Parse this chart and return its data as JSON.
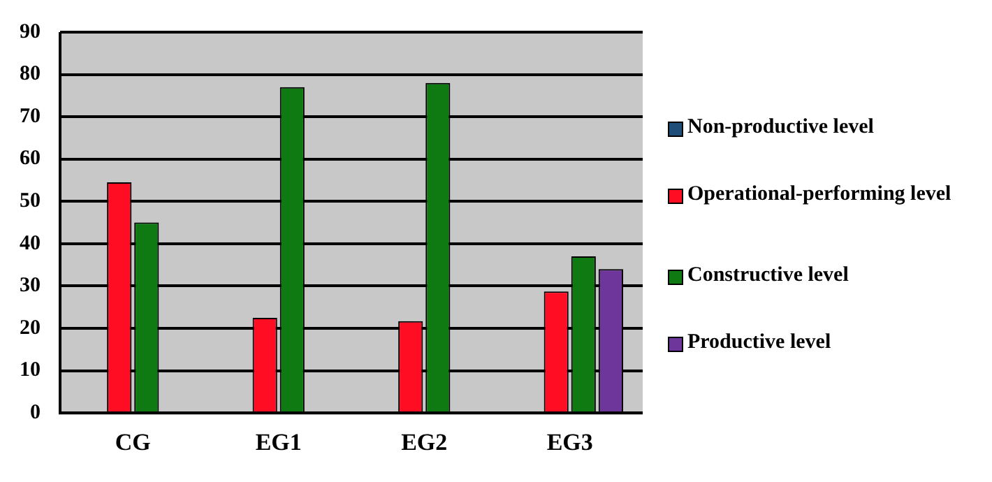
{
  "chart_data": {
    "type": "bar",
    "categories": [
      "CG",
      "EG1",
      "EG2",
      "EG3"
    ],
    "series": [
      {
        "name": "Non-productive level",
        "color": "#1f4e79",
        "values": [
          null,
          null,
          null,
          null
        ]
      },
      {
        "name": "Operational-performing level",
        "color": "#ff0d22",
        "values": [
          54.5,
          22.5,
          21.7,
          28.7
        ]
      },
      {
        "name": "Constructive level",
        "color": "#0f7a12",
        "values": [
          45,
          77,
          78,
          37
        ]
      },
      {
        "name": "Productive level",
        "color": "#6e369a",
        "values": [
          null,
          null,
          null,
          34
        ]
      }
    ],
    "ylim": [
      0,
      90
    ],
    "yticks": [
      0,
      10,
      20,
      30,
      40,
      50,
      60,
      70,
      80,
      90
    ],
    "grid": "y",
    "legend": "right"
  }
}
